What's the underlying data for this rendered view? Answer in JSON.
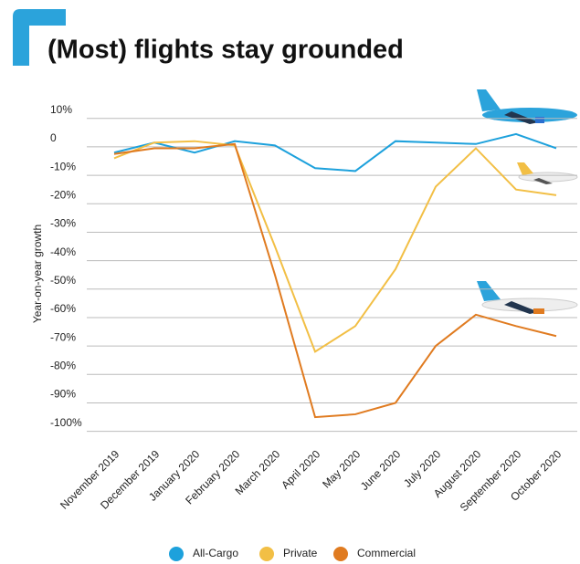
{
  "chart_data": {
    "type": "line",
    "title": "(Most) flights stay grounded",
    "y_label": "Year-on-year growth",
    "categories": [
      "November 2019",
      "December 2019",
      "January 2020",
      "February 2020",
      "March 2020",
      "April 2020",
      "May 2020",
      "June 2020",
      "July 2020",
      "August 2020",
      "September 2020",
      "October 2020"
    ],
    "series": [
      {
        "name": "All-Cargo",
        "color": "#1da1dc",
        "values": [
          -2,
          1.5,
          -2,
          2,
          0.5,
          -7.5,
          -8.5,
          2,
          1.5,
          1,
          4.5,
          -0.5
        ]
      },
      {
        "name": "Private",
        "color": "#f2bf45",
        "values": [
          -4,
          1.5,
          2,
          0.5,
          -35,
          -72,
          -63,
          -43,
          -14,
          -0.5,
          -15,
          -17
        ]
      },
      {
        "name": "Commercial",
        "color": "#e07b20",
        "values": [
          -2.5,
          -0.5,
          -0.5,
          1,
          -45,
          -95,
          -94,
          -90,
          -70,
          -59,
          -63,
          -66.5
        ]
      }
    ],
    "ylim": [
      -103,
      13
    ],
    "yticks": [
      {
        "value": 10,
        "label": "10%"
      },
      0,
      {
        "value": -10,
        "label": "-10%"
      },
      {
        "value": -20,
        "label": "-20%"
      },
      {
        "value": -30,
        "label": "-30%"
      },
      {
        "value": -40,
        "label": "-40%"
      },
      {
        "value": -50,
        "label": "-50%"
      },
      {
        "value": -60,
        "label": "-60%"
      },
      {
        "value": -70,
        "label": "-70%"
      },
      {
        "value": -80,
        "label": "-80%"
      },
      {
        "value": -90,
        "label": "-90%"
      },
      {
        "value": -100,
        "label": "-100%"
      }
    ],
    "grid": true
  }
}
